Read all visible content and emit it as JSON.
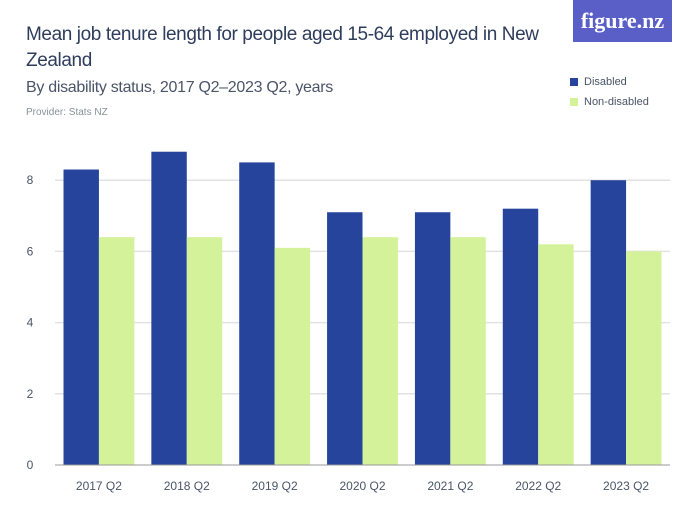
{
  "header": {
    "title": "Mean job tenure length for people aged 15-64 employed in New Zealand",
    "subtitle": "By disability status, 2017 Q2–2023 Q2, years",
    "provider": "Provider: Stats NZ",
    "logo": "figure.nz"
  },
  "chart_data": {
    "type": "bar",
    "title": "Mean job tenure length for people aged 15-64 employed in New Zealand",
    "subtitle": "By disability status, 2017 Q2–2023 Q2, years",
    "categories": [
      "2017 Q2",
      "2018 Q2",
      "2019 Q2",
      "2020 Q2",
      "2021 Q2",
      "2022 Q2",
      "2023 Q2"
    ],
    "series": [
      {
        "name": "Disabled",
        "color": "#26449c",
        "values": [
          8.3,
          8.8,
          8.5,
          7.1,
          7.1,
          7.2,
          8.0
        ]
      },
      {
        "name": "Non-disabled",
        "color": "#d4f29a",
        "values": [
          6.4,
          6.4,
          6.1,
          6.4,
          6.4,
          6.2,
          6.0
        ]
      }
    ],
    "yticks": [
      0,
      2,
      4,
      6,
      8
    ],
    "ylim": [
      0,
      9
    ],
    "grid": true,
    "legend": "top-right"
  }
}
